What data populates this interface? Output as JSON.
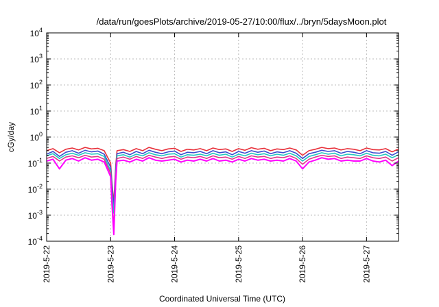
{
  "chart_data": {
    "type": "line",
    "title": "/data/run/goesPlots/archive/2019-05-27/10:00/flux/../bryn/5daysMoon.plot",
    "xlabel": "Coordinated Universal Time (UTC)",
    "ylabel": "cGy/day",
    "y_scale": "log",
    "ylim": [
      0.0001,
      10000
    ],
    "xlim": [
      "2019-05-22",
      "2019-05-27 12:00"
    ],
    "grid": true,
    "legend": "none",
    "x_ticks": [
      "2019-5-22",
      "2019-5-23",
      "2019-5-24",
      "2019-5-25",
      "2019-5-26",
      "2019-5-27"
    ],
    "y_ticks": [
      {
        "base": "10",
        "exp": "-4"
      },
      {
        "base": "10",
        "exp": "-3"
      },
      {
        "base": "10",
        "exp": "-2"
      },
      {
        "base": "10",
        "exp": "-1"
      },
      {
        "base": "10",
        "exp": "0"
      },
      {
        "base": "10",
        "exp": "1"
      },
      {
        "base": "10",
        "exp": "2"
      },
      {
        "base": "10",
        "exp": "3"
      },
      {
        "base": "10",
        "exp": "4"
      }
    ],
    "x_days": [
      0,
      0.1,
      0.2,
      0.3,
      0.4,
      0.5,
      0.6,
      0.7,
      0.8,
      0.9,
      1.0,
      1.02,
      1.05,
      1.08,
      1.1,
      1.2,
      1.3,
      1.4,
      1.5,
      1.6,
      1.7,
      1.8,
      1.9,
      2.0,
      2.1,
      2.2,
      2.3,
      2.4,
      2.5,
      2.6,
      2.7,
      2.8,
      2.9,
      3.0,
      3.1,
      3.2,
      3.3,
      3.4,
      3.5,
      3.6,
      3.7,
      3.8,
      3.9,
      4.0,
      4.1,
      4.2,
      4.3,
      4.4,
      4.5,
      4.6,
      4.7,
      4.8,
      4.9,
      5.0,
      5.1,
      5.2,
      5.3,
      5.4,
      5.5
    ],
    "series": [
      {
        "color": "#e8303a",
        "values": [
          0.3,
          0.36,
          0.25,
          0.34,
          0.38,
          0.32,
          0.4,
          0.35,
          0.37,
          0.3,
          0.1,
          0.02,
          0.003,
          0.08,
          0.3,
          0.33,
          0.28,
          0.36,
          0.3,
          0.4,
          0.34,
          0.3,
          0.35,
          0.37,
          0.28,
          0.34,
          0.32,
          0.36,
          0.3,
          0.38,
          0.33,
          0.35,
          0.28,
          0.36,
          0.31,
          0.39,
          0.34,
          0.37,
          0.3,
          0.35,
          0.33,
          0.38,
          0.32,
          0.2,
          0.3,
          0.34,
          0.4,
          0.36,
          0.38,
          0.32,
          0.36,
          0.34,
          0.3,
          0.38,
          0.33,
          0.32,
          0.36,
          0.27,
          0.35
        ]
      },
      {
        "color": "#3a4ccf",
        "values": [
          0.22,
          0.28,
          0.18,
          0.26,
          0.3,
          0.24,
          0.31,
          0.27,
          0.29,
          0.22,
          0.07,
          0.015,
          0.002,
          0.06,
          0.23,
          0.26,
          0.21,
          0.28,
          0.23,
          0.31,
          0.26,
          0.23,
          0.27,
          0.29,
          0.21,
          0.26,
          0.25,
          0.28,
          0.23,
          0.3,
          0.25,
          0.27,
          0.21,
          0.28,
          0.24,
          0.3,
          0.26,
          0.29,
          0.23,
          0.27,
          0.25,
          0.3,
          0.24,
          0.15,
          0.23,
          0.26,
          0.31,
          0.28,
          0.3,
          0.24,
          0.28,
          0.26,
          0.23,
          0.3,
          0.25,
          0.24,
          0.28,
          0.2,
          0.27
        ]
      },
      {
        "color": "#22c7c0",
        "values": [
          0.19,
          0.23,
          0.15,
          0.21,
          0.24,
          0.2,
          0.25,
          0.22,
          0.23,
          0.18,
          0.05,
          0.008,
          0.0012,
          0.04,
          0.19,
          0.21,
          0.17,
          0.22,
          0.19,
          0.25,
          0.21,
          0.19,
          0.22,
          0.23,
          0.17,
          0.21,
          0.2,
          0.22,
          0.19,
          0.24,
          0.2,
          0.22,
          0.17,
          0.22,
          0.19,
          0.24,
          0.21,
          0.23,
          0.19,
          0.22,
          0.2,
          0.24,
          0.19,
          0.12,
          0.18,
          0.21,
          0.25,
          0.22,
          0.24,
          0.19,
          0.22,
          0.21,
          0.19,
          0.24,
          0.2,
          0.19,
          0.22,
          0.16,
          0.21
        ]
      },
      {
        "color": "#e0378a",
        "values": [
          0.15,
          0.18,
          0.12,
          0.17,
          0.19,
          0.16,
          0.2,
          0.17,
          0.18,
          0.14,
          0.04,
          0.005,
          0.0003,
          0.03,
          0.15,
          0.17,
          0.14,
          0.18,
          0.15,
          0.2,
          0.17,
          0.15,
          0.17,
          0.18,
          0.14,
          0.17,
          0.16,
          0.18,
          0.15,
          0.19,
          0.16,
          0.17,
          0.14,
          0.18,
          0.15,
          0.19,
          0.17,
          0.18,
          0.15,
          0.17,
          0.16,
          0.19,
          0.15,
          0.09,
          0.14,
          0.17,
          0.2,
          0.18,
          0.19,
          0.15,
          0.17,
          0.16,
          0.15,
          0.19,
          0.16,
          0.15,
          0.17,
          0.12,
          0.16
        ]
      },
      {
        "color": "#ff00ff",
        "values": [
          0.12,
          0.14,
          0.06,
          0.13,
          0.15,
          0.12,
          0.16,
          0.13,
          0.14,
          0.11,
          0.03,
          0.003,
          0.00018,
          0.02,
          0.12,
          0.13,
          0.11,
          0.14,
          0.12,
          0.16,
          0.13,
          0.12,
          0.13,
          0.14,
          0.11,
          0.13,
          0.12,
          0.14,
          0.12,
          0.15,
          0.12,
          0.13,
          0.11,
          0.14,
          0.12,
          0.15,
          0.13,
          0.14,
          0.12,
          0.13,
          0.12,
          0.15,
          0.12,
          0.06,
          0.11,
          0.13,
          0.16,
          0.14,
          0.15,
          0.12,
          0.13,
          0.12,
          0.12,
          0.15,
          0.12,
          0.11,
          0.13,
          0.08,
          0.12
        ]
      }
    ]
  }
}
